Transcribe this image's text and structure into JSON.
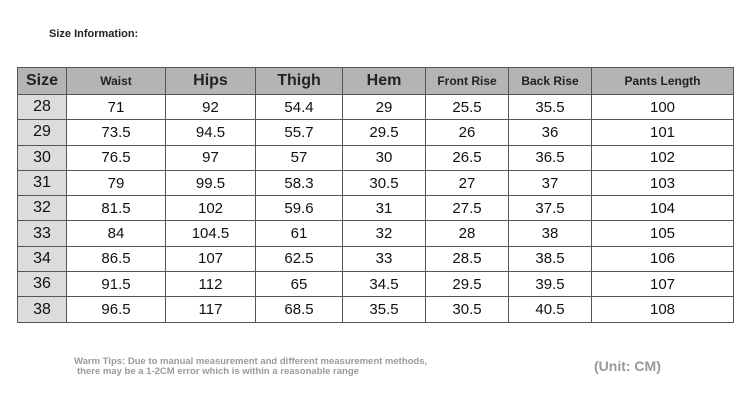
{
  "header": {
    "title": "Size Information:"
  },
  "table": {
    "columns": [
      "Size",
      "Waist",
      "Hips",
      "Thigh",
      "Hem",
      "Front Rise",
      "Back Rise",
      "Pants Length"
    ],
    "rows": [
      [
        "28",
        "71",
        "92",
        "54.4",
        "29",
        "25.5",
        "35.5",
        "100"
      ],
      [
        "29",
        "73.5",
        "94.5",
        "55.7",
        "29.5",
        "26",
        "36",
        "101"
      ],
      [
        "30",
        "76.5",
        "97",
        "57",
        "30",
        "26.5",
        "36.5",
        "102"
      ],
      [
        "31",
        "79",
        "99.5",
        "58.3",
        "30.5",
        "27",
        "37",
        "103"
      ],
      [
        "32",
        "81.5",
        "102",
        "59.6",
        "31",
        "27.5",
        "37.5",
        "104"
      ],
      [
        "33",
        "84",
        "104.5",
        "61",
        "32",
        "28",
        "38",
        "105"
      ],
      [
        "34",
        "86.5",
        "107",
        "62.5",
        "33",
        "28.5",
        "38.5",
        "106"
      ],
      [
        "36",
        "91.5",
        "112",
        "65",
        "34.5",
        "29.5",
        "39.5",
        "107"
      ],
      [
        "38",
        "96.5",
        "117",
        "68.5",
        "35.5",
        "30.5",
        "40.5",
        "108"
      ]
    ]
  },
  "footer": {
    "tips": [
      "Warm Tips: Due to manual measurement and different measurement methods,",
      "there may be a 1-2CM error which is within a reasonable range"
    ],
    "unit": "(Unit: CM)"
  }
}
